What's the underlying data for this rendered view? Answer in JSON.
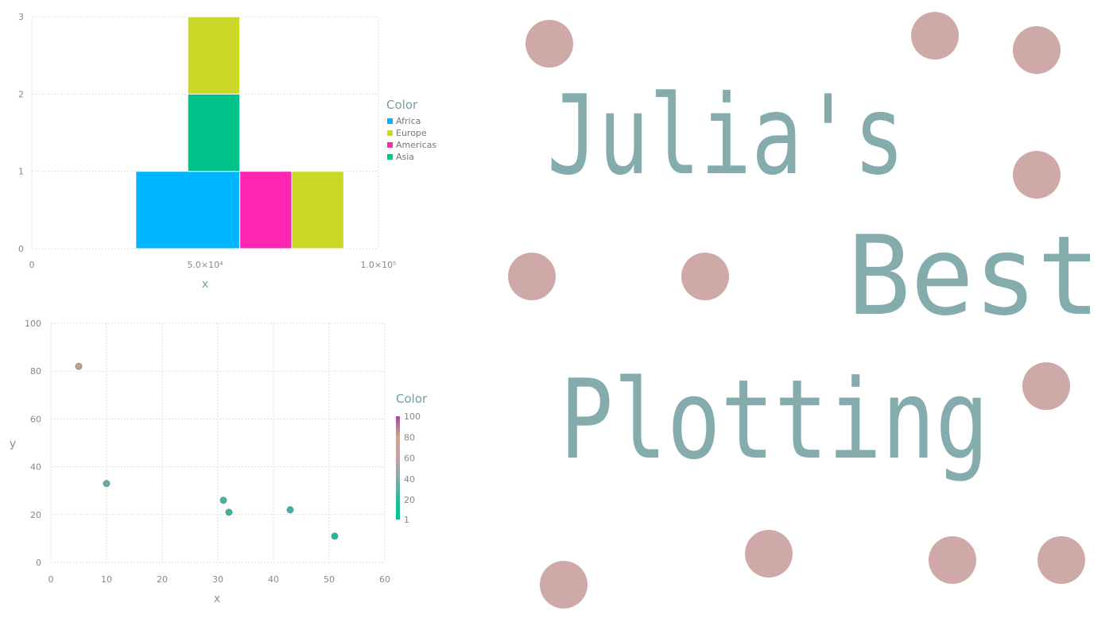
{
  "chart_data": [
    {
      "type": "bar",
      "subtype": "stacked-histogram",
      "xlabel": "x",
      "ylabel": "",
      "xlim": [
        0,
        100000
      ],
      "ylim": [
        0,
        3
      ],
      "x_tick_values": [
        0,
        50000,
        100000
      ],
      "x_tick_labels": [
        "0",
        "5.0×10⁴",
        "1.0×10⁵"
      ],
      "y_tick_values": [
        0,
        1,
        2,
        3
      ],
      "y_tick_labels": [
        "0",
        "1",
        "2",
        "3"
      ],
      "grid": true,
      "legend_title": "Color",
      "legend_position": "right",
      "legend": [
        {
          "name": "Africa",
          "color": "#00b6ff"
        },
        {
          "name": "Europe",
          "color": "#ccd827"
        },
        {
          "name": "Americas",
          "color": "#ff27b2"
        },
        {
          "name": "Asia",
          "color": "#00c389"
        }
      ],
      "bars": [
        {
          "x0": 30000,
          "x1": 60000,
          "y0": 0,
          "y1": 1,
          "group": "Africa"
        },
        {
          "x0": 45000,
          "x1": 60000,
          "y0": 1,
          "y1": 2,
          "group": "Asia"
        },
        {
          "x0": 45000,
          "x1": 60000,
          "y0": 2,
          "y1": 3,
          "group": "Europe"
        },
        {
          "x0": 60000,
          "x1": 75000,
          "y0": 0,
          "y1": 1,
          "group": "Americas"
        },
        {
          "x0": 75000,
          "x1": 90000,
          "y0": 0,
          "y1": 1,
          "group": "Europe"
        }
      ]
    },
    {
      "type": "scatter",
      "xlabel": "x",
      "ylabel": "y",
      "xlim": [
        0,
        60
      ],
      "ylim": [
        0,
        100
      ],
      "x_ticks": [
        0,
        10,
        20,
        30,
        40,
        50,
        60
      ],
      "y_ticks": [
        0,
        20,
        40,
        60,
        80,
        100
      ],
      "grid": true,
      "colorbar_title": "Color",
      "colorbar_ticks": [
        1,
        20,
        40,
        60,
        80,
        100
      ],
      "colorbar_stops": [
        {
          "value": 1,
          "color": "#00c389"
        },
        {
          "value": 20,
          "color": "#2fb7a0"
        },
        {
          "value": 40,
          "color": "#86a9a9"
        },
        {
          "value": 60,
          "color": "#c4a0a2"
        },
        {
          "value": 80,
          "color": "#c6a98f"
        },
        {
          "value": 100,
          "color": "#a64aa6"
        }
      ],
      "points": [
        {
          "x": 5,
          "y": 82,
          "color_value": 82
        },
        {
          "x": 10,
          "y": 33,
          "color_value": 33
        },
        {
          "x": 31,
          "y": 26,
          "color_value": 26
        },
        {
          "x": 32,
          "y": 21,
          "color_value": 21
        },
        {
          "x": 43,
          "y": 22,
          "color_value": 22
        },
        {
          "x": 51,
          "y": 11,
          "color_value": 11
        }
      ]
    }
  ],
  "banner": {
    "line1": "Julia's",
    "line2": "Best",
    "line3": "Plotting",
    "text_color": "#85acac",
    "dot_color": "#cfa9a8"
  }
}
